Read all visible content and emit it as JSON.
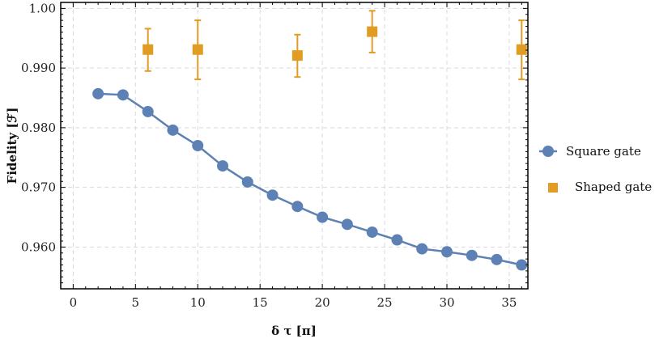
{
  "chart_data": {
    "type": "scatter",
    "title": "",
    "xlabel": "δ τ [π]",
    "ylabel": "Fidelity [ℱ]",
    "xlim": [
      -1,
      36.5
    ],
    "ylim": [
      0.953,
      1.001
    ],
    "xticks": [
      0,
      5,
      10,
      15,
      20,
      25,
      30,
      35
    ],
    "xtick_labels": [
      "0",
      "5",
      "10",
      "15",
      "20",
      "25",
      "30",
      "35"
    ],
    "yticks": [
      0.96,
      0.97,
      0.98,
      0.99,
      1.0
    ],
    "ytick_labels": [
      "0.960",
      "0.970",
      "0.980",
      "0.990",
      "1.00"
    ],
    "grid": true,
    "legend_position": "right",
    "series": [
      {
        "name": "Square gate",
        "style": "line+markers",
        "marker": "circle",
        "color": "#5d81b4",
        "x": [
          2,
          4,
          6,
          8,
          10,
          12,
          14,
          16,
          18,
          20,
          22,
          24,
          26,
          28,
          30,
          32,
          34,
          36
        ],
        "y": [
          0.9857,
          0.9855,
          0.9827,
          0.9796,
          0.977,
          0.9736,
          0.9709,
          0.9687,
          0.9668,
          0.965,
          0.9638,
          0.9625,
          0.9612,
          0.9597,
          0.9592,
          0.9586,
          0.9579,
          0.957
        ]
      },
      {
        "name": "Shaped gate",
        "style": "markers+errorbars",
        "marker": "square",
        "color": "#e19c24",
        "x": [
          6,
          10,
          18,
          24,
          36
        ],
        "y": [
          0.9931,
          0.9931,
          0.9921,
          0.9961,
          0.9931
        ],
        "y_err_upper": [
          0.9966,
          0.998,
          0.9956,
          0.9996,
          0.998
        ],
        "y_err_lower": [
          0.9895,
          0.9881,
          0.9885,
          0.9926,
          0.9881
        ]
      }
    ]
  }
}
